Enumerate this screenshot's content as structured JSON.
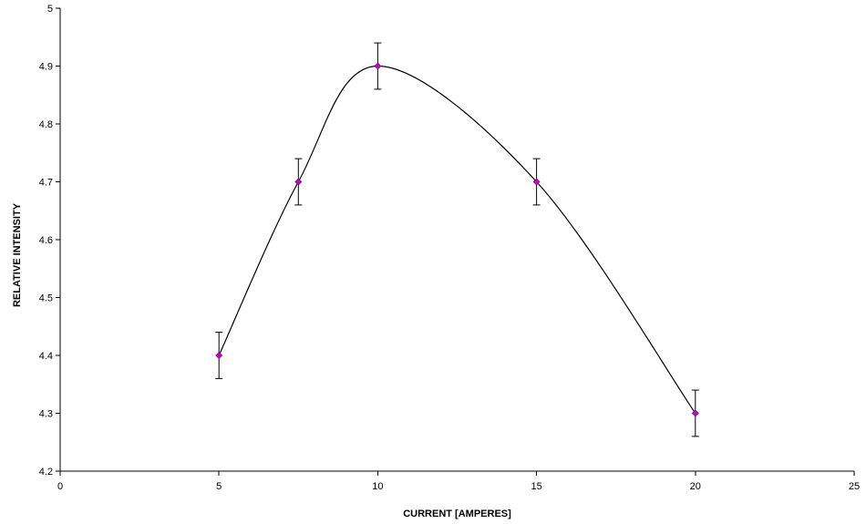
{
  "chart_data": {
    "type": "scatter",
    "title": "",
    "xlabel": "CURRENT [AMPERES]",
    "ylabel": "RELATIVE INTENSITY",
    "xlim": [
      0,
      25
    ],
    "ylim": [
      4.2,
      5
    ],
    "x_ticks": [
      0,
      5,
      10,
      15,
      20,
      25
    ],
    "y_ticks": [
      4.2,
      4.3,
      4.4,
      4.5,
      4.6,
      4.7,
      4.8,
      4.9,
      5
    ],
    "x_tick_labels": [
      "0",
      "5",
      "10",
      "15",
      "20",
      "25"
    ],
    "y_tick_labels": [
      "4.2",
      "4.3",
      "4.4",
      "4.5",
      "4.6",
      "4.7",
      "4.8",
      "4.9",
      "5"
    ],
    "grid": false,
    "legend": "none",
    "series": [
      {
        "x": [
          5,
          7.5,
          10,
          15,
          20
        ],
        "y": [
          4.4,
          4.7,
          4.9,
          4.7,
          4.3
        ],
        "y_error": [
          0.04,
          0.04,
          0.04,
          0.04,
          0.04
        ],
        "marker": "diamond",
        "marker_color": "#CC00CC",
        "line": "smoothed",
        "line_color": "#000000"
      }
    ]
  }
}
